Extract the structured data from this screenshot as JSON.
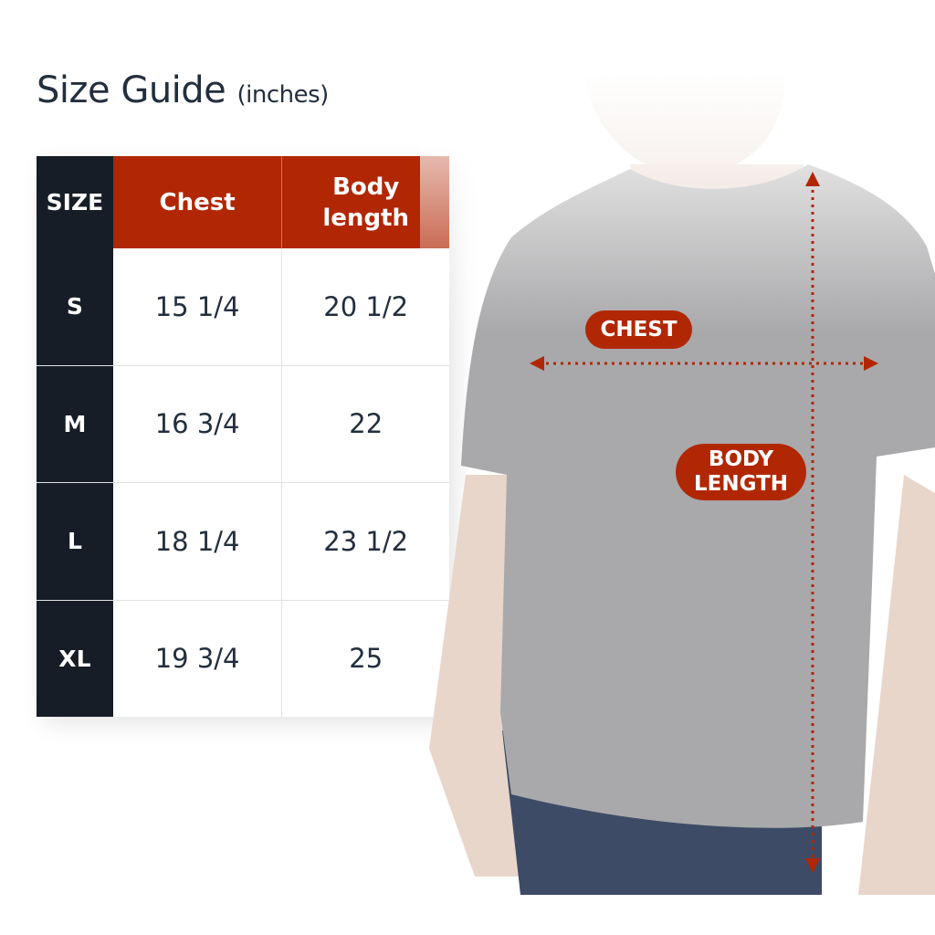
{
  "title": {
    "main": "Size Guide",
    "unit": "(inches)"
  },
  "table": {
    "headers": [
      "SIZE",
      "Chest",
      "Body length"
    ],
    "rows": [
      {
        "size": "S",
        "chest": "15 1/4",
        "body_length": "20 1/2"
      },
      {
        "size": "M",
        "chest": "16 3/4",
        "body_length": "22"
      },
      {
        "size": "L",
        "chest": "18 1/4",
        "body_length": "23 1/2"
      },
      {
        "size": "XL",
        "chest": "19 3/4",
        "body_length": "25"
      }
    ]
  },
  "figure": {
    "chest_label": "CHEST",
    "body_length_label": "BODY LENGTH"
  },
  "colors": {
    "accent": "#b12704",
    "dark": "#161d26",
    "text": "#232f3e",
    "shirt": "#a9a9ab"
  }
}
